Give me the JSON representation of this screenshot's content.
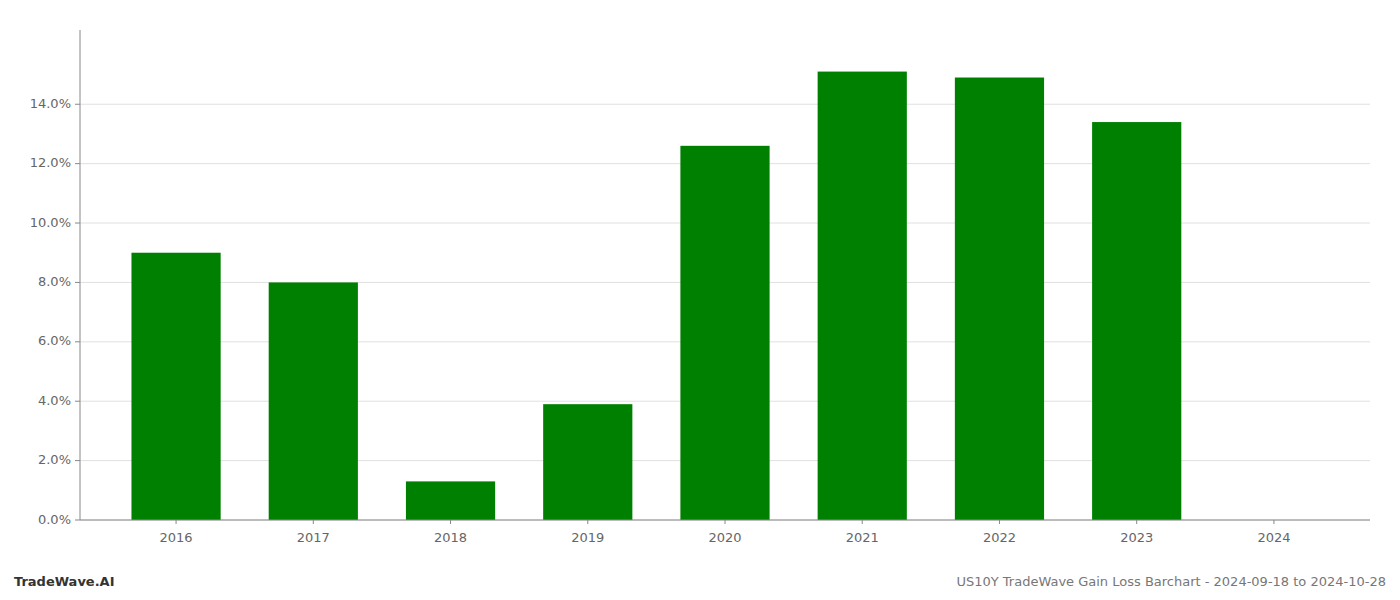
{
  "chart_data": {
    "type": "bar",
    "x": [
      2016,
      2017,
      2018,
      2019,
      2020,
      2021,
      2022,
      2023,
      2024
    ],
    "values": [
      0.09,
      0.08,
      0.013,
      0.039,
      0.126,
      0.151,
      0.149,
      0.134,
      0.0
    ],
    "color": "#008000",
    "xlim": [
      2015.3,
      2024.7
    ],
    "xticks": [
      2016,
      2017,
      2018,
      2019,
      2020,
      2021,
      2022,
      2023,
      2024
    ],
    "ylim": [
      0,
      0.165
    ],
    "yticks": [
      {
        "value": 0.0,
        "label": "0.0%"
      },
      {
        "value": 0.02,
        "label": "2.0%"
      },
      {
        "value": 0.04,
        "label": "4.0%"
      },
      {
        "value": 0.06,
        "label": "6.0%"
      },
      {
        "value": 0.08,
        "label": "8.0%"
      },
      {
        "value": 0.1,
        "label": "10.0%"
      },
      {
        "value": 0.12,
        "label": "12.0%"
      },
      {
        "value": 0.14,
        "label": "14.0%"
      }
    ],
    "grid": true,
    "annotations": [
      "TradeWave.AI",
      "US10Y TradeWave Gain Loss Barchart - 2024-09-18 to 2024-10-28"
    ]
  }
}
